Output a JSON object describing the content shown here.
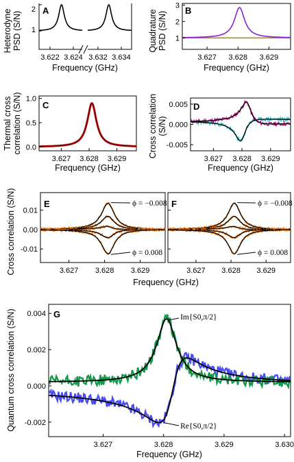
{
  "colors": {
    "black": "#000000",
    "purple": "#8b1fd6",
    "brown": "#b5852a",
    "darkred": "#6b0000",
    "magenta": "#c8108c",
    "cyan": "#2fc2c2",
    "orange": "#f07a12",
    "green": "#119a4a",
    "blue": "#4a4cf0"
  },
  "chart_data": [
    {
      "id": "A",
      "type": "line",
      "label": "A",
      "xlabel": "Frequency (GHz)",
      "ylabel": [
        "Heterodyne",
        "PSD (S/N)"
      ],
      "xticks": [
        "3.622",
        "3.624",
        "3.632",
        "3.634"
      ],
      "yticks": [
        "1",
        "2"
      ],
      "ylim": [
        0.3,
        2.05
      ],
      "series": [
        {
          "segment": "left",
          "x": [
            3.6215,
            3.624
          ],
          "peak_x": 3.6228,
          "peak_y": 2.0,
          "base_y": 1.0
        },
        {
          "segment": "right",
          "x": [
            3.632,
            3.6345
          ],
          "peak_x": 3.6332,
          "peak_y": 2.0,
          "base_y": 1.0
        }
      ]
    },
    {
      "id": "B",
      "type": "line",
      "label": "B",
      "xlabel": "Frequency (GHz)",
      "ylabel": [
        "Quadrature",
        "PSD (S/N)"
      ],
      "xticks": [
        "3.627",
        "3.628",
        "3.629"
      ],
      "xtick_values": [
        3.627,
        3.628,
        3.629
      ],
      "yticks": [
        "1",
        "2",
        "3"
      ],
      "ylim": [
        0.3,
        3.1
      ],
      "xlim": [
        3.6262,
        3.6297
      ],
      "series": [
        {
          "color": "purple",
          "peak_x": 3.62805,
          "peak_y": 2.85,
          "base_y": 1.0,
          "gamma": 0.0002
        },
        {
          "color": "brown",
          "peak_x": 3.62805,
          "peak_y": 1.0,
          "base_y": 1.0,
          "gamma": 0.0002
        }
      ]
    },
    {
      "id": "C",
      "type": "line",
      "label": "C",
      "xlabel": "Frequency (GHz)",
      "ylabel": [
        "Thermal cross",
        "correlation (S/N)"
      ],
      "xticks": [
        "3.627",
        "3.628",
        "3.629"
      ],
      "xtick_values": [
        3.627,
        3.628,
        3.629
      ],
      "yticks": [
        "0.0",
        "0.5",
        "1.0"
      ],
      "ytick_values": [
        0.0,
        0.5,
        1.0
      ],
      "ylim": [
        -0.08,
        1.05
      ],
      "xlim": [
        3.6262,
        3.6297
      ],
      "series": [
        {
          "color": "darkred",
          "peak_x": 3.6281,
          "peak_y": 0.9,
          "base_y": 0.0,
          "gamma": 0.0002
        }
      ]
    },
    {
      "id": "D",
      "type": "line",
      "label": "D",
      "xlabel": "Frequency (GHz)",
      "ylabel": [
        "Cross correlation",
        "(S/N)"
      ],
      "xticks": [
        "3.627",
        "3.628",
        "3.629"
      ],
      "xtick_values": [
        3.627,
        3.628,
        3.629
      ],
      "yticks": [
        "0.005",
        "0.000",
        "-0.005"
      ],
      "ytick_values": [
        0.005,
        0.0,
        -0.005
      ],
      "ylim": [
        -0.0065,
        0.0065
      ],
      "xlim": [
        3.6262,
        3.6297
      ],
      "series": [
        {
          "color": "magenta",
          "kind": "dispersive",
          "peak_x": 3.6283,
          "amplitude": 0.0045
        },
        {
          "color": "cyan",
          "kind": "dispersive",
          "peak_x": 3.6279,
          "amplitude": -0.0045
        }
      ]
    },
    {
      "id": "E",
      "type": "line",
      "label": "E",
      "xlabel": "",
      "ylabel": [
        "Cross correlation (S/N)"
      ],
      "xticks": [
        "3.627",
        "3.628",
        "3.629"
      ],
      "xtick_values": [
        3.627,
        3.628,
        3.629
      ],
      "yticks": [
        "0.01",
        "0.00",
        "-0.01"
      ],
      "ytick_values": [
        0.01,
        0.0,
        -0.01
      ],
      "ylim": [
        -0.017,
        0.019
      ],
      "xlim": [
        3.6262,
        3.6297
      ],
      "peak_x": 3.6281,
      "peak_values": [
        0.0135,
        0.0068,
        0.0015,
        -0.0042,
        -0.0125
      ],
      "annotations": [
        {
          "text": "ϕ = −0.008"
        },
        {
          "text": "ϕ = 0.008"
        }
      ]
    },
    {
      "id": "F",
      "type": "line",
      "label": "F",
      "xlabel": "",
      "ylabel": [],
      "xticks": [
        "3.627",
        "3.628",
        "3.629"
      ],
      "xtick_values": [
        3.627,
        3.628,
        3.629
      ],
      "yticks": [],
      "ylim": [
        -0.017,
        0.019
      ],
      "xlim": [
        3.6262,
        3.6297
      ],
      "peak_x": 3.6281,
      "peak_values": [
        0.0135,
        0.0068,
        0.0015,
        -0.0042,
        -0.0125
      ],
      "annotations": [
        {
          "text": "ϕ = −0.008"
        },
        {
          "text": "ϕ = 0.008"
        }
      ]
    },
    {
      "id": "EF",
      "xlabel": "Frequency (GHz)"
    },
    {
      "id": "G",
      "type": "line",
      "label": "G",
      "xlabel": "Frequency (GHz)",
      "ylabel": [
        "Quantum cross correlation (S/N)"
      ],
      "xticks": [
        "3.627",
        "3.628",
        "3.629",
        "3.630"
      ],
      "xtick_values": [
        3.627,
        3.628,
        3.629,
        3.63
      ],
      "yticks": [
        "0.004",
        "0.002",
        "0.000",
        "-0.002"
      ],
      "ytick_values": [
        0.004,
        0.002,
        0.0,
        -0.002
      ],
      "ylim": [
        -0.0028,
        0.0045
      ],
      "xlim": [
        3.6261,
        3.6301
      ],
      "series": [
        {
          "name": "Im{S0,π/2}",
          "color": "green",
          "kind": "lorentz",
          "peak_x": 3.62805,
          "peak_y": 0.0035,
          "gamma": 0.0002
        },
        {
          "name": "Re{S0,π/2}",
          "color": "blue",
          "kind": "dispersive",
          "peak_x": 3.62815,
          "amplitude": 0.0017
        }
      ],
      "annotations": [
        {
          "text": "Im{S0,π/2}"
        },
        {
          "text": "Re{S0,π/2}"
        }
      ]
    }
  ]
}
